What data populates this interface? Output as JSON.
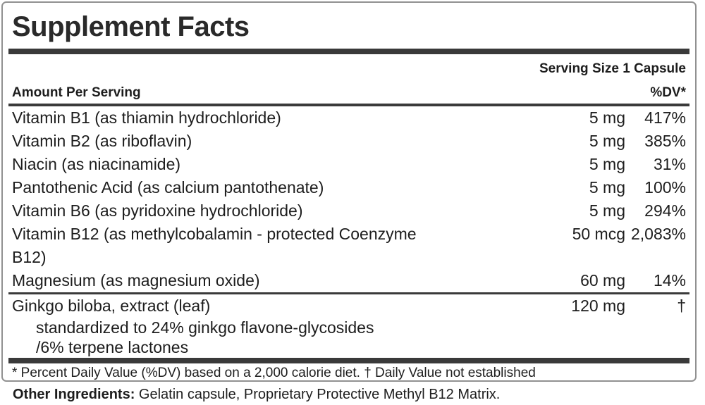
{
  "label": {
    "title": "Supplement Facts",
    "serving_size": "Serving Size 1 Capsule",
    "columns": {
      "amount_header": "Amount Per Serving",
      "dv_header": "%DV*"
    },
    "rows": [
      {
        "name": "Vitamin B1 (as thiamin hydrochloride)",
        "amount": "5 mg",
        "dv": "417%"
      },
      {
        "name": "Vitamin B2 (as riboflavin)",
        "amount": "5 mg",
        "dv": "385%"
      },
      {
        "name": "Niacin (as niacinamide)",
        "amount": "5 mg",
        "dv": "31%"
      },
      {
        "name": "Pantothenic Acid (as calcium pantothenate)",
        "amount": "5 mg",
        "dv": "100%"
      },
      {
        "name": "Vitamin B6 (as pyridoxine hydrochloride)",
        "amount": "5 mg",
        "dv": "294%"
      },
      {
        "name": "Vitamin B12 (as methylcobalamin - protected Coenzyme\nB12)",
        "amount": "50 mcg",
        "dv": "2,083%"
      },
      {
        "name": "Magnesium (as magnesium oxide)",
        "amount": "60 mg",
        "dv": "14%",
        "divider_after": true
      },
      {
        "name": "Ginkgo biloba, extract (leaf)",
        "amount": "120 mg",
        "dv": "†",
        "sub_lines": [
          "standardized to 24% ginkgo flavone-glycosides",
          "/6% terpene lactones"
        ]
      }
    ],
    "footnote": "* Percent Daily Value (%DV) based on a 2,000 calorie diet. † Daily Value not established",
    "other_ingredients_label": "Other Ingredients:",
    "other_ingredients_text": " Gelatin capsule, Proprietary Protective Methyl B12 Matrix.",
    "colors": {
      "text": "#1d1d1d",
      "bar": "#3a3a3a",
      "border": "#919191",
      "background": "#ffffff"
    }
  }
}
